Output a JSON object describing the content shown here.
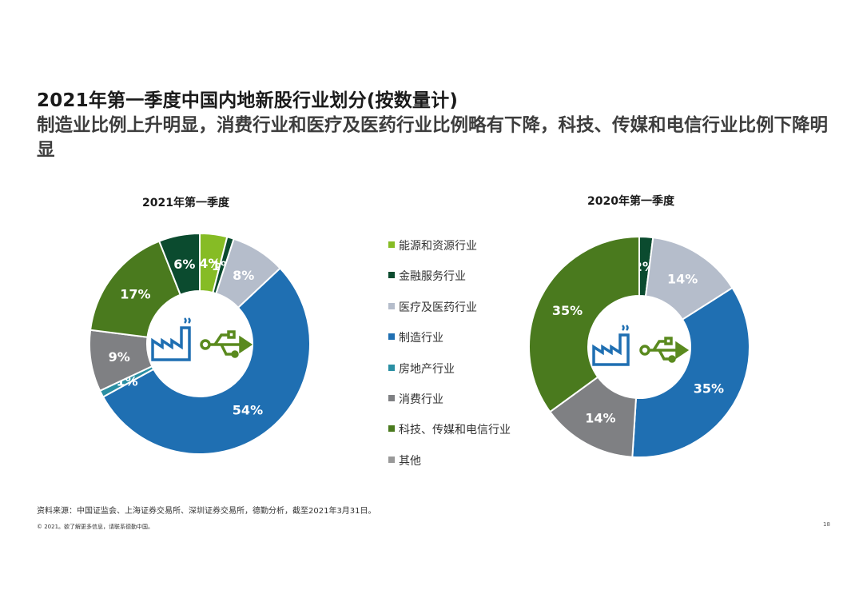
{
  "header": {
    "title": "2021年第一季度中国内地新股行业划分(按数量计)",
    "subtitle": "制造业比例上升明显，消费行业和医疗及医药行业比例略有下降，科技、传媒和电信行业比例下降明显"
  },
  "legend": [
    {
      "label": "能源和资源行业",
      "color": "#86bc25"
    },
    {
      "label": "金融服务行业",
      "color": "#0b4b2f"
    },
    {
      "label": "医疗及医药行业",
      "color": "#b5bdcb"
    },
    {
      "label": "制造行业",
      "color": "#1f6fb2"
    },
    {
      "label": "房地产行业",
      "color": "#2a8fa3"
    },
    {
      "label": "消费行业",
      "color": "#7f8083"
    },
    {
      "label": "科技、传媒和电信行业",
      "color": "#4a7a1e"
    },
    {
      "label": "其他",
      "color": "#999999"
    }
  ],
  "chart_data": [
    {
      "type": "pie",
      "title": "2021年第一季度",
      "slices": [
        {
          "label": "能源和资源行业",
          "value": 4,
          "display": "4%",
          "color": "#86bc25"
        },
        {
          "label": "金融服务行业",
          "value": 1,
          "display": "1%",
          "color": "#0b4b2f"
        },
        {
          "label": "医疗及医药行业",
          "value": 8,
          "display": "8%",
          "color": "#b5bdcb"
        },
        {
          "label": "制造行业",
          "value": 54,
          "display": "54%",
          "color": "#1f6fb2"
        },
        {
          "label": "房地产行业",
          "value": 1,
          "display": "1%",
          "color": "#2a8fa3"
        },
        {
          "label": "消费行业",
          "value": 9,
          "display": "9%",
          "color": "#7f8083"
        },
        {
          "label": "科技、传媒和电信行业",
          "value": 17,
          "display": "17%",
          "color": "#4a7a1e"
        },
        {
          "label": "金融服务行业",
          "value": 6,
          "display": "6%",
          "color": "#0b4b2f"
        }
      ]
    },
    {
      "type": "pie",
      "title": "2020年第一季度",
      "slices": [
        {
          "label": "金融服务行业",
          "value": 2,
          "display": "2%",
          "color": "#0b4b2f"
        },
        {
          "label": "医疗及医药行业",
          "value": 14,
          "display": "14%",
          "color": "#b5bdcb"
        },
        {
          "label": "制造行业",
          "value": 35,
          "display": "35%",
          "color": "#1f6fb2"
        },
        {
          "label": "消费行业",
          "value": 14,
          "display": "14%",
          "color": "#7f8083"
        },
        {
          "label": "科技、传媒和电信行业",
          "value": 35,
          "display": "35%",
          "color": "#4a7a1e"
        }
      ]
    }
  ],
  "footer": {
    "source": "资料来源：中国证监会、上海证券交易所、深圳证券交易所，德勤分析，截至2021年3月31日。",
    "copyright": "© 2021。欲了解更多信息，请联系德勤中国。",
    "page": "18"
  }
}
